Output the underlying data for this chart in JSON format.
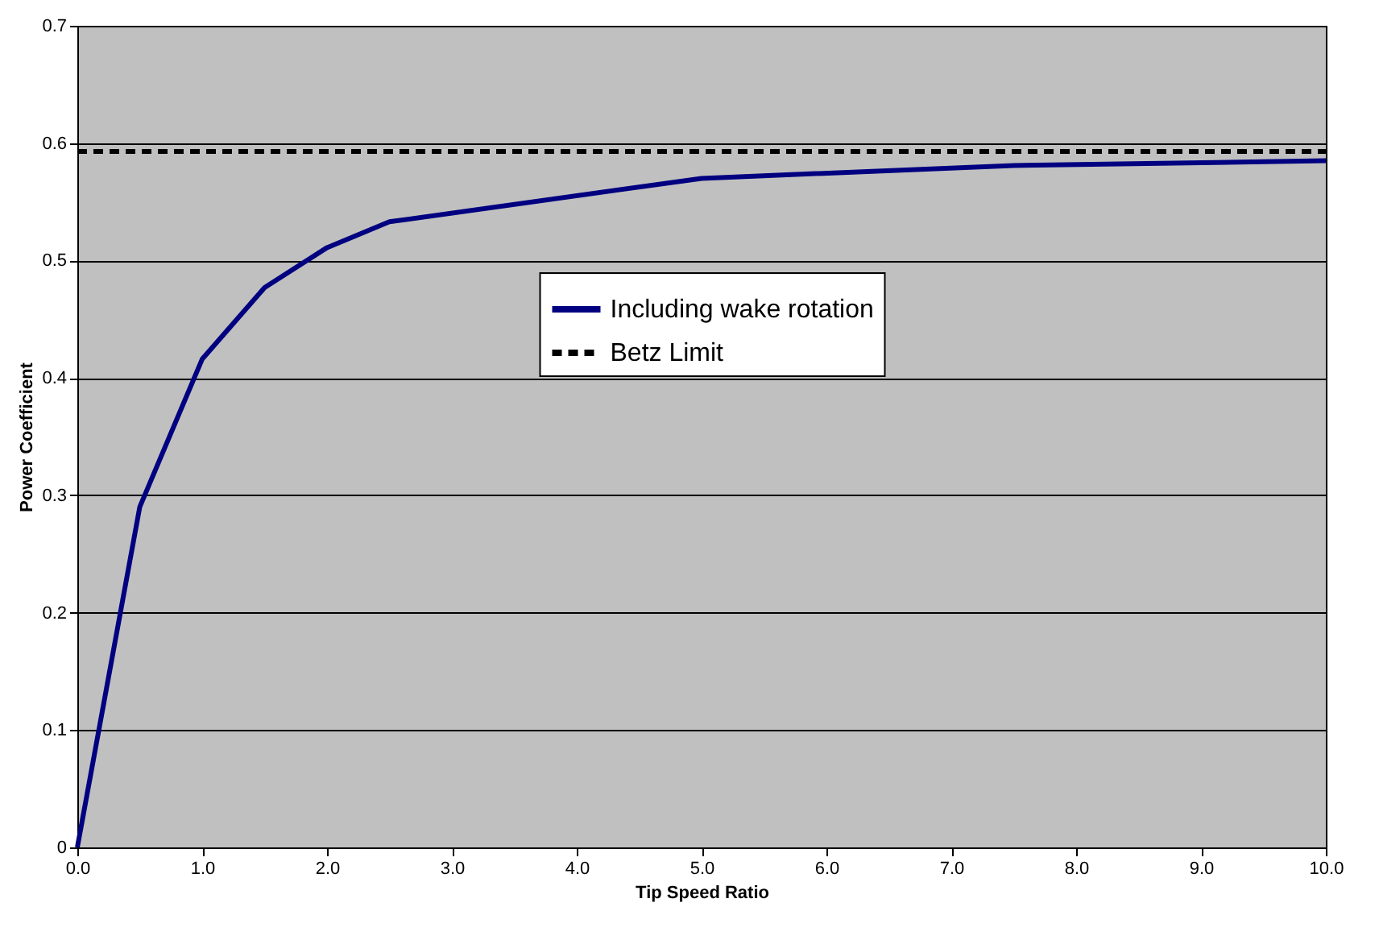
{
  "chart_data": {
    "type": "line",
    "xlabel": "Tip Speed Ratio",
    "ylabel": "Power Coefficient",
    "series": [
      {
        "name": "Including wake rotation",
        "color": "#000080",
        "line_style": "solid",
        "x": [
          0,
          0.5,
          1.0,
          1.5,
          2.0,
          2.5,
          5.0,
          7.5,
          10.0
        ],
        "values": [
          0,
          0.29,
          0.416,
          0.477,
          0.511,
          0.533,
          0.57,
          0.581,
          0.585
        ]
      },
      {
        "name": "Betz Limit",
        "color": "#000000",
        "line_style": "dashed",
        "x": [
          0,
          10.0
        ],
        "values": [
          0.593,
          0.593
        ]
      }
    ],
    "xlim": [
      0,
      10
    ],
    "ylim": [
      0,
      0.7
    ],
    "xticks": [
      {
        "value": 0,
        "label": "0.0"
      },
      {
        "value": 1,
        "label": "1.0"
      },
      {
        "value": 2,
        "label": "2.0"
      },
      {
        "value": 3,
        "label": "3.0"
      },
      {
        "value": 4,
        "label": "4.0"
      },
      {
        "value": 5,
        "label": "5.0"
      },
      {
        "value": 6,
        "label": "6.0"
      },
      {
        "value": 7,
        "label": "7.0"
      },
      {
        "value": 8,
        "label": "8.0"
      },
      {
        "value": 9,
        "label": "9.0"
      },
      {
        "value": 10,
        "label": "10.0"
      }
    ],
    "yticks": [
      0,
      0.1,
      0.2,
      0.3,
      0.4,
      0.5,
      0.6,
      0.7
    ],
    "grid": "y",
    "legend": "center",
    "marker": "none"
  }
}
